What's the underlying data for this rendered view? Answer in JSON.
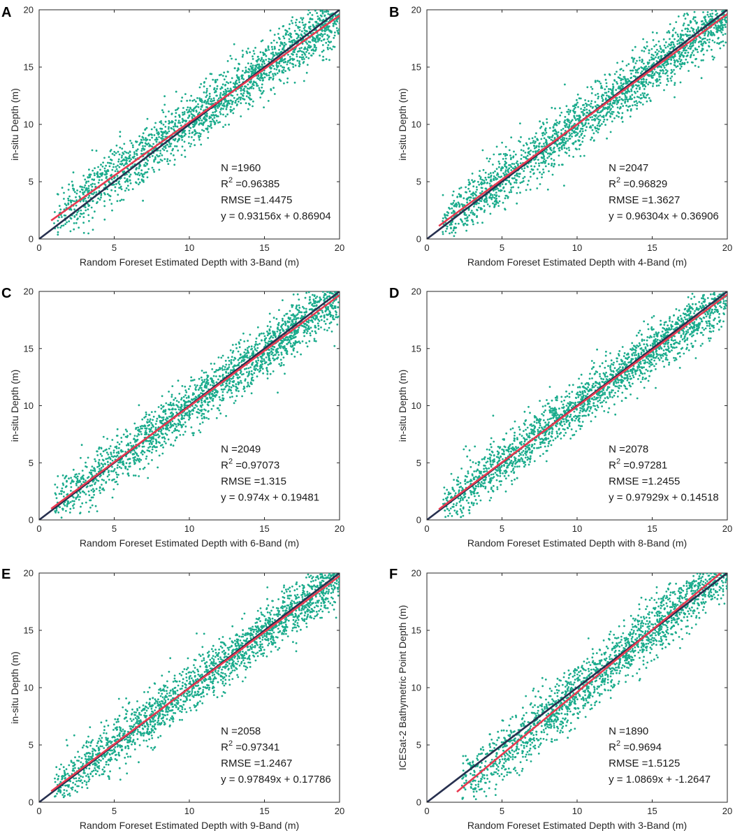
{
  "figure": {
    "colors": {
      "scatter": "#1aab8c",
      "identity_line": "#27304f",
      "fit_line": "#e8384f",
      "axis": "#262626"
    }
  },
  "chart_data": [
    {
      "type": "scatter",
      "panel": "A",
      "xlabel": "Random Foreset Estimated Depth with 3-Band (m)",
      "ylabel": "in-situ Depth (m)",
      "xlim": [
        0,
        20
      ],
      "ylim": [
        0,
        20
      ],
      "xticks": [
        0,
        5,
        10,
        15,
        20
      ],
      "yticks": [
        0,
        5,
        10,
        15,
        20
      ],
      "n_points": 1960,
      "fit": {
        "slope": 0.93156,
        "intercept": 0.86904,
        "x_range": [
          0.8,
          20
        ]
      },
      "identity": {
        "x_range": [
          0,
          20
        ]
      },
      "point_spread": {
        "x_range": [
          1.0,
          20
        ],
        "residual_sd": 1.4
      },
      "annotations": [
        "N =1960",
        "R",
        "2",
        " =0.96385",
        "RMSE =1.4475",
        "y = 0.93156x + 0.86904"
      ]
    },
    {
      "type": "scatter",
      "panel": "B",
      "xlabel": "Random Foreset Estimated Depth with 4-Band (m)",
      "ylabel": "in-situ Depth (m)",
      "xlim": [
        0,
        20
      ],
      "ylim": [
        0,
        20
      ],
      "xticks": [
        0,
        5,
        10,
        15,
        20
      ],
      "yticks": [
        0,
        5,
        10,
        15,
        20
      ],
      "n_points": 2047,
      "fit": {
        "slope": 0.96304,
        "intercept": 0.36906,
        "x_range": [
          0.8,
          20
        ]
      },
      "identity": {
        "x_range": [
          0,
          20
        ]
      },
      "point_spread": {
        "x_range": [
          1.0,
          20
        ],
        "residual_sd": 1.35
      },
      "annotations": [
        "N =2047",
        "R",
        "2",
        " =0.96829",
        "RMSE =1.3627",
        "y = 0.96304x + 0.36906"
      ]
    },
    {
      "type": "scatter",
      "panel": "C",
      "xlabel": "Random Foreset Estimated Depth with 6-Band (m)",
      "ylabel": "in-situ Depth (m)",
      "xlim": [
        0,
        20
      ],
      "ylim": [
        0,
        20
      ],
      "xticks": [
        0,
        5,
        10,
        15,
        20
      ],
      "yticks": [
        0,
        5,
        10,
        15,
        20
      ],
      "n_points": 2049,
      "fit": {
        "slope": 0.974,
        "intercept": 0.19481,
        "x_range": [
          0.8,
          20
        ]
      },
      "identity": {
        "x_range": [
          0,
          20
        ]
      },
      "point_spread": {
        "x_range": [
          1.0,
          20
        ],
        "residual_sd": 1.3
      },
      "annotations": [
        "N =2049",
        "R",
        "2",
        " =0.97073",
        "RMSE =1.315",
        "y = 0.974x + 0.19481"
      ]
    },
    {
      "type": "scatter",
      "panel": "D",
      "xlabel": "Random Foreset Estimated Depth with 8-Band (m)",
      "ylabel": "in-situ Depth (m)",
      "xlim": [
        0,
        20
      ],
      "ylim": [
        0,
        20
      ],
      "xticks": [
        0,
        5,
        10,
        15,
        20
      ],
      "yticks": [
        0,
        5,
        10,
        15,
        20
      ],
      "n_points": 2078,
      "fit": {
        "slope": 0.97929,
        "intercept": 0.14518,
        "x_range": [
          0.8,
          20
        ]
      },
      "identity": {
        "x_range": [
          0,
          20
        ]
      },
      "point_spread": {
        "x_range": [
          1.0,
          20
        ],
        "residual_sd": 1.25
      },
      "annotations": [
        "N =2078",
        "R",
        "2",
        " =0.97281",
        "RMSE =1.2455",
        "y = 0.97929x + 0.14518"
      ]
    },
    {
      "type": "scatter",
      "panel": "E",
      "xlabel": "Random Foreset Estimated Depth with 9-Band (m)",
      "ylabel": "in-situ Depth (m)",
      "xlim": [
        0,
        20
      ],
      "ylim": [
        0,
        20
      ],
      "xticks": [
        0,
        5,
        10,
        15,
        20
      ],
      "yticks": [
        0,
        5,
        10,
        15,
        20
      ],
      "n_points": 2058,
      "fit": {
        "slope": 0.97849,
        "intercept": 0.17786,
        "x_range": [
          0.8,
          20
        ]
      },
      "identity": {
        "x_range": [
          0,
          20
        ]
      },
      "point_spread": {
        "x_range": [
          1.0,
          20
        ],
        "residual_sd": 1.25
      },
      "annotations": [
        "N =2058",
        "R",
        "2",
        " =0.97341",
        "RMSE =1.2467",
        "y = 0.97849x + 0.17786"
      ]
    },
    {
      "type": "scatter",
      "panel": "F",
      "xlabel": "Random Foreset Estimated Depth with 3-Band (m)",
      "ylabel": "ICESat-2 Bathymetric Point Depth (m)",
      "xlim": [
        0,
        20
      ],
      "ylim": [
        0,
        20
      ],
      "xticks": [
        0,
        5,
        10,
        15,
        20
      ],
      "yticks": [
        0,
        5,
        10,
        15,
        20
      ],
      "n_points": 1890,
      "fit": {
        "slope": 1.0869,
        "intercept": -1.2647,
        "x_range": [
          2.0,
          19.6
        ]
      },
      "identity": {
        "x_range": [
          0,
          20
        ]
      },
      "point_spread": {
        "x_range": [
          2.3,
          20
        ],
        "residual_sd": 1.45
      },
      "annotations": [
        "N =1890",
        "R",
        "2",
        " =0.9694",
        "RMSE =1.5125",
        "y = 1.0869x + -1.2647"
      ]
    }
  ]
}
